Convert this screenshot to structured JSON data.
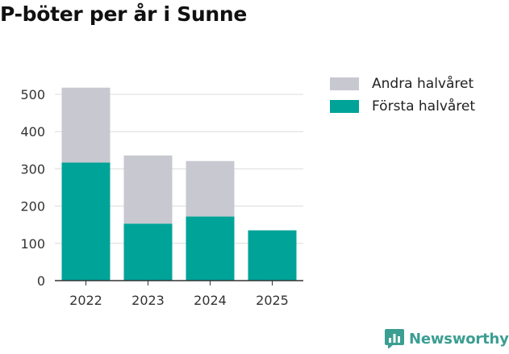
{
  "title": "P-böter per år i Sunne",
  "legend": [
    {
      "label": "Andra halvåret",
      "color": "#c8c8d0"
    },
    {
      "label": "Första halvåret",
      "color": "#00a398"
    }
  ],
  "brand": {
    "name": "Newsworthy",
    "icon": "newsworthy-logo-icon",
    "color": "#3b9e92"
  },
  "chart_data": {
    "type": "bar",
    "stacked": true,
    "title": "P-böter per år i Sunne",
    "categories": [
      "2022",
      "2023",
      "2024",
      "2025"
    ],
    "series": [
      {
        "name": "Första halvåret",
        "color": "#00a398",
        "values": [
          317,
          153,
          172,
          135
        ]
      },
      {
        "name": "Andra halvåret",
        "color": "#c8c8d0",
        "values": [
          201,
          183,
          149,
          0
        ]
      }
    ],
    "xlabel": "",
    "ylabel": "",
    "ylim": [
      0,
      520
    ],
    "yticks": [
      0,
      100,
      200,
      300,
      400,
      500
    ],
    "grid": true,
    "legend_position": "right"
  }
}
